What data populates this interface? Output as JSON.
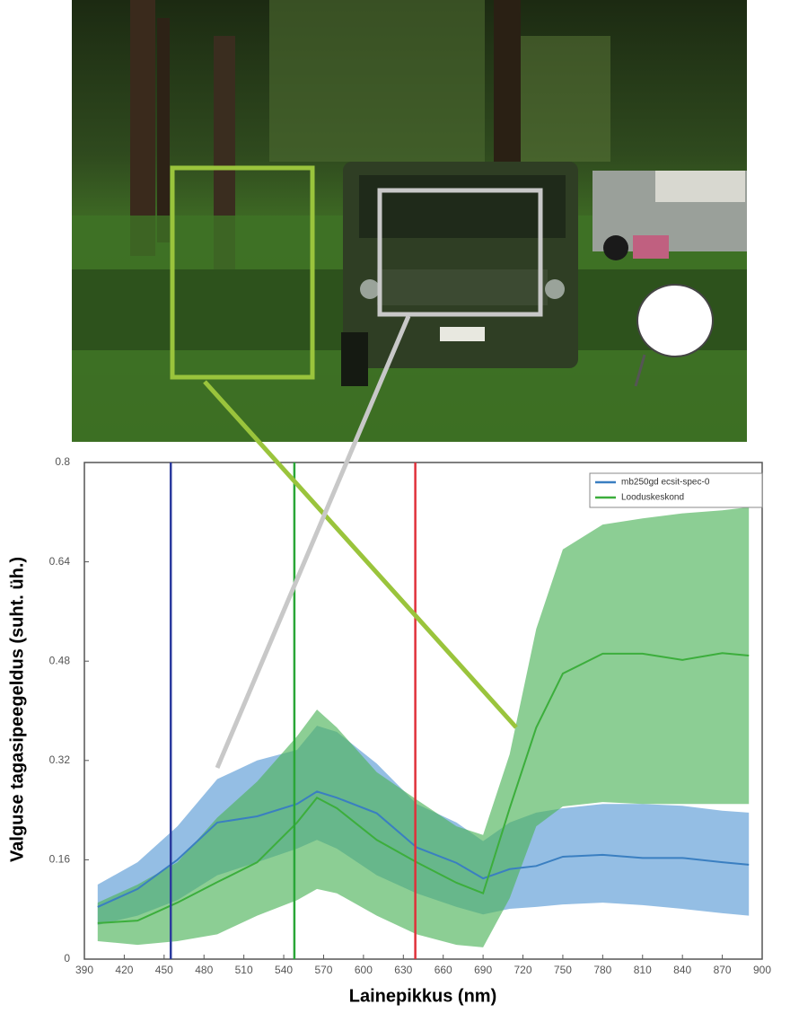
{
  "chart_data": {
    "type": "band-line",
    "xlabel": "Lainepikkus (nm)",
    "ylabel": "Valguse tagasipeegeldus (suht. üh.)",
    "x": [
      400,
      430,
      460,
      490,
      520,
      550,
      565,
      580,
      610,
      640,
      670,
      690,
      710,
      730,
      750,
      780,
      810,
      840,
      870,
      890
    ],
    "series": [
      {
        "name": "mb250gd ecsit-spec-0",
        "color": "#3a7fc1",
        "band_color": "#5b9bd5",
        "values": [
          0.084,
          0.113,
          0.16,
          0.22,
          0.23,
          0.25,
          0.27,
          0.26,
          0.235,
          0.18,
          0.155,
          0.13,
          0.145,
          0.15,
          0.165,
          0.168,
          0.163,
          0.163,
          0.156,
          0.152
        ],
        "upper": [
          0.12,
          0.156,
          0.214,
          0.29,
          0.32,
          0.337,
          0.376,
          0.366,
          0.315,
          0.25,
          0.22,
          0.19,
          0.22,
          0.236,
          0.243,
          0.25,
          0.25,
          0.247,
          0.239,
          0.236
        ],
        "lower": [
          0.055,
          0.07,
          0.095,
          0.135,
          0.156,
          0.178,
          0.192,
          0.178,
          0.135,
          0.106,
          0.084,
          0.072,
          0.081,
          0.084,
          0.088,
          0.091,
          0.087,
          0.081,
          0.074,
          0.07
        ]
      },
      {
        "name": "Looduskeskond",
        "color": "#3cae3c",
        "band_color": "#4fb35a",
        "values": [
          0.058,
          0.062,
          0.091,
          0.124,
          0.156,
          0.22,
          0.26,
          0.243,
          0.192,
          0.156,
          0.123,
          0.106,
          0.243,
          0.373,
          0.46,
          0.492,
          0.492,
          0.482,
          0.493,
          0.489
        ],
        "upper": [
          0.091,
          0.12,
          0.156,
          0.228,
          0.286,
          0.359,
          0.402,
          0.373,
          0.301,
          0.257,
          0.214,
          0.2,
          0.33,
          0.532,
          0.66,
          0.7,
          0.71,
          0.718,
          0.723,
          0.728
        ],
        "lower": [
          0.029,
          0.023,
          0.029,
          0.04,
          0.07,
          0.095,
          0.113,
          0.106,
          0.07,
          0.04,
          0.023,
          0.019,
          0.098,
          0.214,
          0.246,
          0.253,
          0.25,
          0.25,
          0.25,
          0.25
        ]
      }
    ],
    "vlines": [
      {
        "value": 455,
        "color": "#2b3a9e"
      },
      {
        "value": 548,
        "color": "#2aa637"
      },
      {
        "value": 639,
        "color": "#e0303a"
      }
    ],
    "xlim": [
      390,
      900
    ],
    "xticks": [
      390,
      420,
      450,
      480,
      510,
      540,
      570,
      600,
      630,
      660,
      690,
      720,
      750,
      780,
      810,
      840,
      870,
      900
    ],
    "ylim": [
      0,
      0.8
    ],
    "yticks": [
      0,
      0.16,
      0.32,
      0.48,
      0.64,
      0.8
    ],
    "legend": "upper right"
  }
}
